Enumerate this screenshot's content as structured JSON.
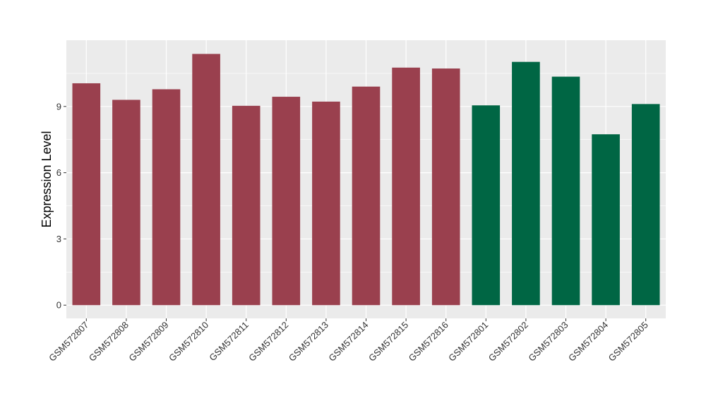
{
  "chart_data": {
    "type": "bar",
    "title": "",
    "xlabel": "",
    "ylabel": "Expression Level",
    "ylim": [
      -0.6,
      12.0
    ],
    "yticks": [
      0,
      3,
      6,
      9
    ],
    "grid": true,
    "legend": "none",
    "colors": {
      "panel_background": "#ebebeb",
      "grid_major": "#ffffff",
      "group_a": "#9a404e",
      "group_b": "#006644"
    },
    "categories": [
      "GSM572807",
      "GSM572808",
      "GSM572809",
      "GSM572810",
      "GSM572811",
      "GSM572812",
      "GSM572813",
      "GSM572814",
      "GSM572815",
      "GSM572816",
      "GSM572801",
      "GSM572802",
      "GSM572803",
      "GSM572804",
      "GSM572805"
    ],
    "values": [
      10.05,
      9.3,
      9.78,
      11.38,
      9.03,
      9.44,
      9.22,
      9.9,
      10.76,
      10.72,
      9.05,
      11.02,
      10.35,
      7.74,
      9.11
    ],
    "bar_colors": [
      "#9a404e",
      "#9a404e",
      "#9a404e",
      "#9a404e",
      "#9a404e",
      "#9a404e",
      "#9a404e",
      "#9a404e",
      "#9a404e",
      "#9a404e",
      "#006644",
      "#006644",
      "#006644",
      "#006644",
      "#006644"
    ]
  }
}
